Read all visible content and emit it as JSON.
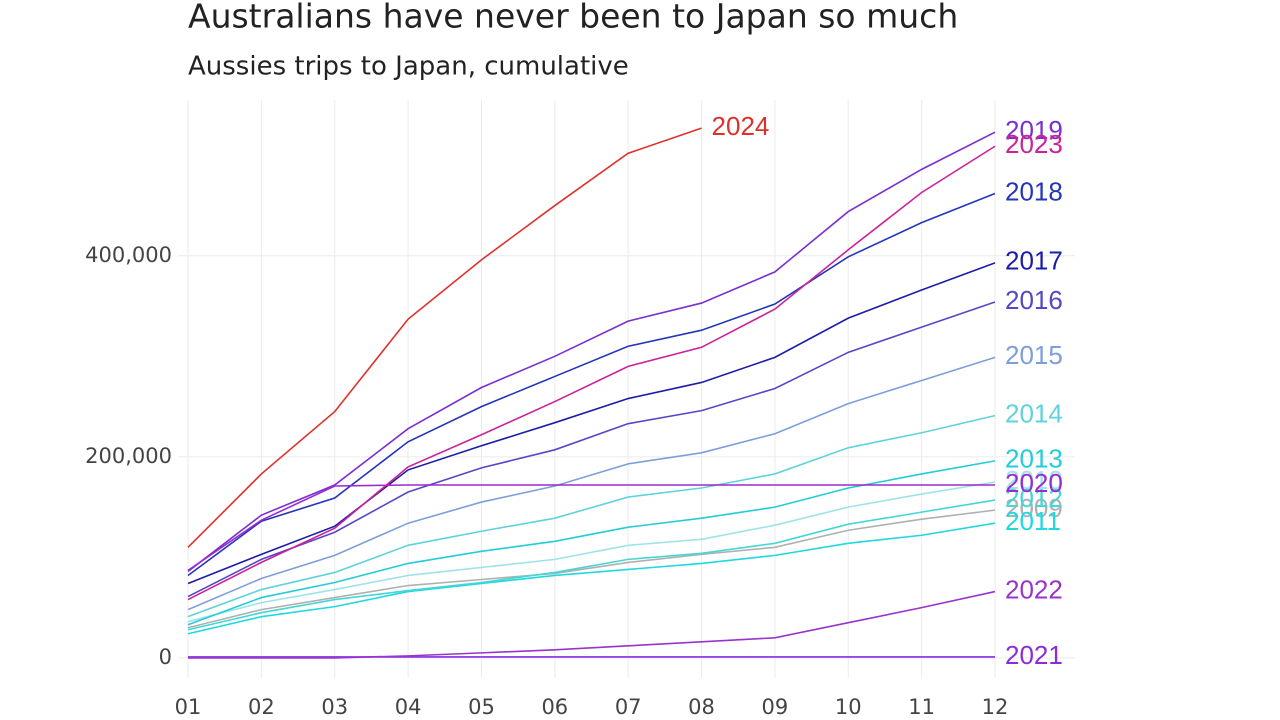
{
  "chart_data": {
    "type": "line",
    "title": "Australians have never been to Japan so much",
    "subtitle": "Aussies trips to Japan, cumulative",
    "categories": [
      "01",
      "02",
      "03",
      "04",
      "05",
      "06",
      "07",
      "08",
      "09",
      "10",
      "11",
      "12"
    ],
    "ylim": [
      -20000,
      555000
    ],
    "yticks": [
      0,
      {
        "value": 200000,
        "label": "200,000"
      },
      {
        "value": 400000,
        "label": "400,000"
      }
    ],
    "grid": true,
    "series": [
      {
        "name": "2009",
        "color": "#b0b0b0",
        "values": [
          30000,
          48000,
          60000,
          72000,
          78000,
          84000,
          95000,
          103000,
          110000,
          127000,
          138000,
          147000
        ]
      },
      {
        "name": "2010",
        "color": "#9fe3ea",
        "values": [
          36000,
          55000,
          68000,
          82000,
          90000,
          98000,
          112000,
          118000,
          132000,
          150000,
          163000,
          175000
        ]
      },
      {
        "name": "2011",
        "color": "#1fd8e0",
        "values": [
          24000,
          41000,
          51000,
          66000,
          74000,
          82000,
          88000,
          94000,
          102000,
          114000,
          122000,
          134000
        ]
      },
      {
        "name": "2012",
        "color": "#45d6d6",
        "values": [
          28000,
          45000,
          58000,
          67000,
          75000,
          85000,
          98000,
          104000,
          114000,
          133000,
          145000,
          157000
        ]
      },
      {
        "name": "2013",
        "color": "#22ccd8",
        "values": [
          33000,
          60000,
          75000,
          94000,
          106000,
          116000,
          130000,
          139000,
          150000,
          169000,
          183000,
          196000
        ]
      },
      {
        "name": "2014",
        "color": "#5fd3dd",
        "values": [
          41000,
          68000,
          85000,
          112000,
          126000,
          139000,
          160000,
          169000,
          183000,
          209000,
          224000,
          241000
        ]
      },
      {
        "name": "2015",
        "color": "#7c9fdc",
        "values": [
          48000,
          79000,
          102000,
          134000,
          155000,
          171000,
          193000,
          204000,
          223000,
          253000,
          276000,
          299000
        ]
      },
      {
        "name": "2016",
        "color": "#5548c8",
        "values": [
          61000,
          98000,
          125000,
          165000,
          189000,
          207000,
          233000,
          246000,
          268000,
          304000,
          329000,
          354000
        ]
      },
      {
        "name": "2017",
        "color": "#1c1ca8",
        "values": [
          74000,
          103000,
          131000,
          187000,
          211000,
          234000,
          258000,
          274000,
          299000,
          338000,
          366000,
          393000
        ]
      },
      {
        "name": "2018",
        "color": "#2435bb",
        "values": [
          82000,
          136000,
          159000,
          215000,
          250000,
          280000,
          310000,
          326000,
          352000,
          399000,
          433000,
          462000
        ]
      },
      {
        "name": "2019",
        "color": "#7a2fd0",
        "values": [
          86000,
          142000,
          172000,
          228000,
          269000,
          300000,
          335000,
          353000,
          384000,
          444000,
          486000,
          523000
        ]
      },
      {
        "name": "2020",
        "color": "#9a2bd0",
        "values": [
          87000,
          137000,
          171000,
          172000,
          172000,
          172000,
          172000,
          172000,
          172000,
          172000,
          172000,
          172000
        ]
      },
      {
        "name": "2021",
        "color": "#8a2be2",
        "values": [
          1000,
          1000,
          1000,
          1000,
          1000,
          1000,
          1000,
          1000,
          1000,
          1000,
          1000,
          1000
        ]
      },
      {
        "name": "2022",
        "color": "#9933cc",
        "values": [
          0,
          0,
          0,
          2000,
          5000,
          8000,
          12000,
          16000,
          20000,
          35000,
          50000,
          66000
        ]
      },
      {
        "name": "2023",
        "color": "#cc2299",
        "values": [
          58000,
          95000,
          129000,
          190000,
          222000,
          255000,
          290000,
          309000,
          347000,
          406000,
          463000,
          509000
        ]
      },
      {
        "name": "2024",
        "color": "#e0302a",
        "values": [
          110000,
          183000,
          245000,
          337000,
          396000,
          450000,
          502000,
          527000,
          null,
          null,
          null,
          null
        ]
      }
    ]
  }
}
